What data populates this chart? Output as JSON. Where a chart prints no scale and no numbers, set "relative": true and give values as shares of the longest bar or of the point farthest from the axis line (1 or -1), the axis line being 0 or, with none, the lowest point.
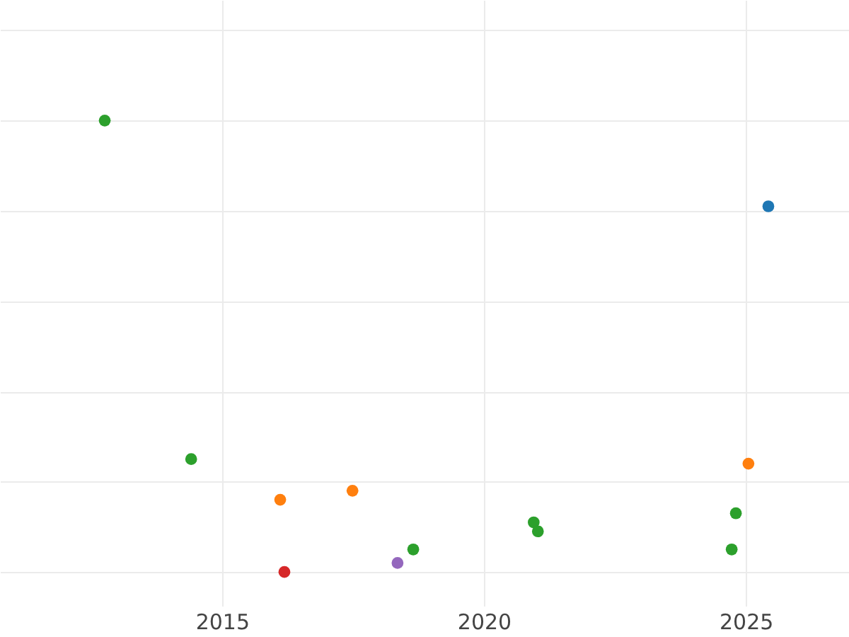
{
  "chart_data": {
    "type": "scatter",
    "relative": true,
    "xlim": [
      2010.76,
      2026.97
    ],
    "xticks": [
      2015,
      2020,
      2025
    ],
    "grid": true,
    "marker": "circle",
    "tick_labels": "x",
    "series": [
      {
        "color": "#2ca02c",
        "x": [
          2012.76,
          2014.41,
          2018.65,
          2020.95,
          2021.03,
          2024.81,
          2024.73
        ],
        "values": [
          1,
          0.25,
          0.05,
          0.11,
          0.09,
          0.13,
          0.05
        ]
      },
      {
        "color": "#ff7f0e",
        "x": [
          2016.11,
          2017.49,
          2025.05
        ],
        "values": [
          0.16,
          0.18,
          0.24
        ]
      },
      {
        "color": "#d62728",
        "x": [
          2016.19
        ],
        "values": [
          0
        ]
      },
      {
        "color": "#9467bd",
        "x": [
          2018.35
        ],
        "values": [
          0.02
        ]
      },
      {
        "color": "#1f77b4",
        "x": [
          2025.43
        ],
        "values": [
          0.81
        ]
      }
    ]
  }
}
